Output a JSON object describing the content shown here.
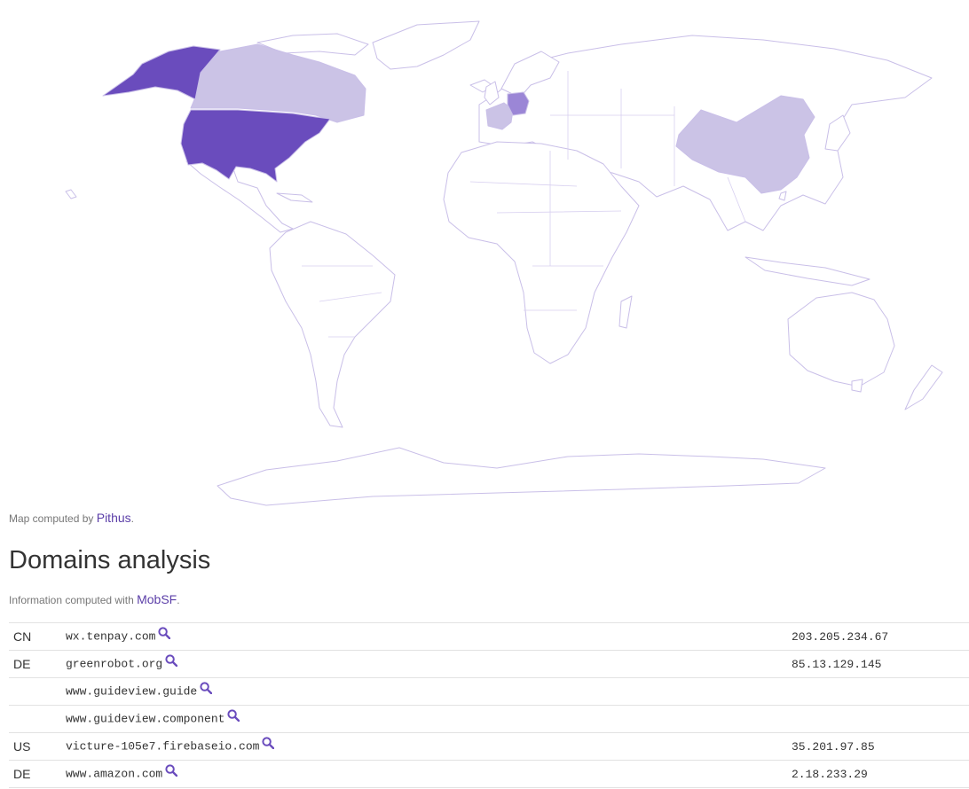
{
  "map": {
    "credit_prefix": "Map computed by",
    "credit_link": "Pithus",
    "credit_suffix": ".",
    "colors": {
      "none": "#ffffff",
      "border": "#c9bfe8",
      "low": "#cbc3e6",
      "mid": "#9b86d6",
      "high": "#6a4cbd"
    },
    "highlighted_countries": [
      {
        "country": "US",
        "level": "high"
      },
      {
        "country": "DE",
        "level": "mid"
      },
      {
        "country": "FR",
        "level": "low"
      },
      {
        "country": "CA",
        "level": "low"
      },
      {
        "country": "CN",
        "level": "low"
      }
    ]
  },
  "section": {
    "title": "Domains analysis",
    "info_prefix": "Information computed with",
    "info_link": "MobSF",
    "info_suffix": "."
  },
  "domains": [
    {
      "country": "CN",
      "domain": "wx.tenpay.com",
      "ip": "203.205.234.67"
    },
    {
      "country": "DE",
      "domain": "greenrobot.org",
      "ip": "85.13.129.145"
    },
    {
      "country": "",
      "domain": "www.guideview.guide",
      "ip": ""
    },
    {
      "country": "",
      "domain": "www.guideview.component",
      "ip": ""
    },
    {
      "country": "US",
      "domain": "victure-105e7.firebaseio.com",
      "ip": "35.201.97.85"
    },
    {
      "country": "DE",
      "domain": "www.amazon.com",
      "ip": "2.18.233.29"
    }
  ]
}
